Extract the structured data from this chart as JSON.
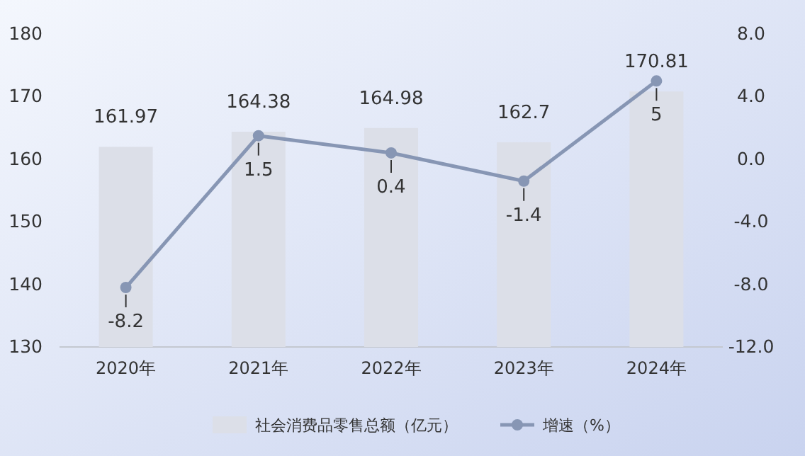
{
  "chart_data": {
    "type": "bar",
    "categories": [
      "2020年",
      "2021年",
      "2022年",
      "2023年",
      "2024年"
    ],
    "series": [
      {
        "name": "社会消费品零售总额（亿元）",
        "color": "#dcdfe8",
        "values": [
          161.97,
          164.38,
          164.98,
          162.7,
          170.81
        ]
      },
      {
        "name": "增速（%）",
        "type": "line",
        "axis": "y2",
        "color": "#8796b4",
        "marker": "circle",
        "values": [
          -8.2,
          1.5,
          0.4,
          -1.4,
          5
        ]
      }
    ],
    "ylim": [
      130,
      180
    ],
    "yticks": [
      130,
      140,
      150,
      160,
      170,
      180
    ],
    "y2lim": [
      -12,
      8
    ],
    "y2ticks": [
      {
        "value": -12,
        "label": "-12.0"
      },
      {
        "value": -8,
        "label": "-8.0"
      },
      {
        "value": -4,
        "label": "-4.0"
      },
      {
        "value": 0,
        "label": "0.0"
      },
      {
        "value": 4,
        "label": "4.0"
      },
      {
        "value": 8,
        "label": "8.0"
      }
    ],
    "data_labels": true,
    "legend": "bottom"
  }
}
